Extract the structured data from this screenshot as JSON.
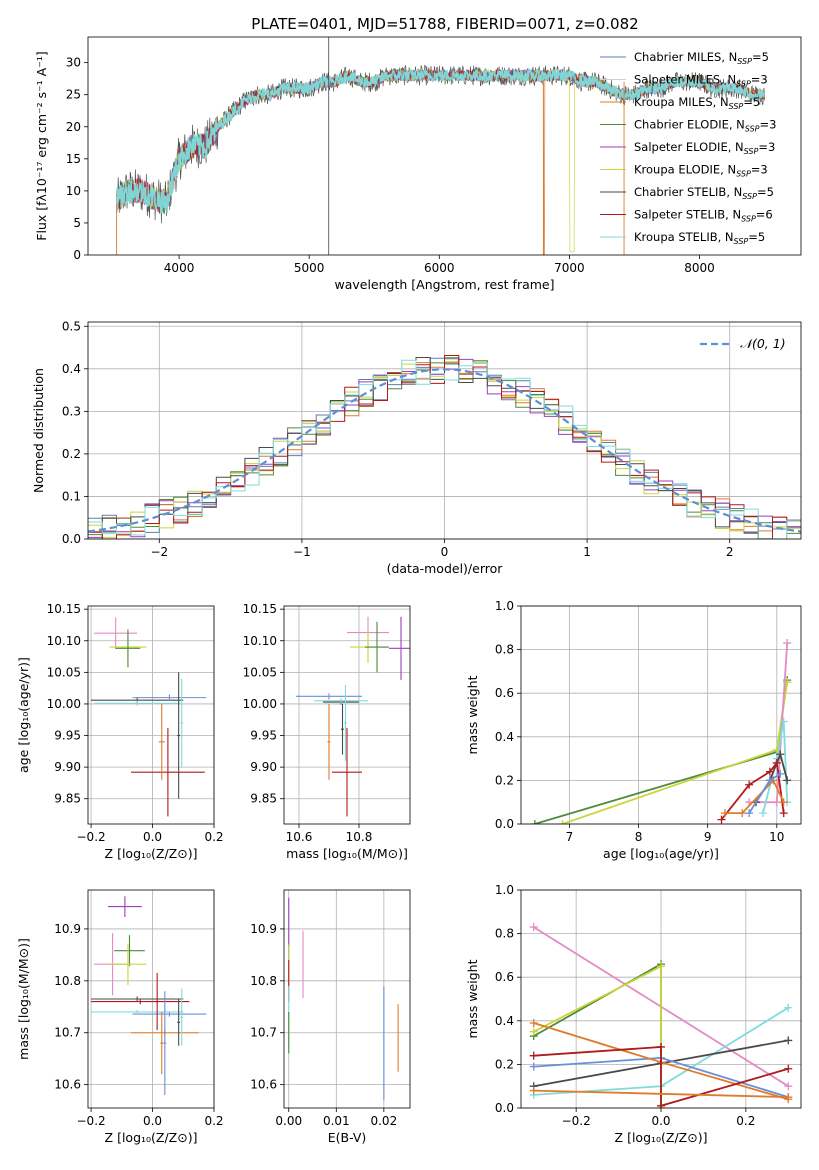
{
  "figure": {
    "title": "PLATE=0401, MJD=51788, FIBERID=0071, z=0.082"
  },
  "colors": {
    "chabrier_miles": "#5b7fb0",
    "salpeter_miles": "#cfcfcf",
    "kroupa_miles": "#e07b2a",
    "chabrier_elodie": "#4f8a3c",
    "salpeter_elodie": "#9b3fc0",
    "kroupa_elodie": "#c8d63a",
    "chabrier_stelib": "#4a4a4a",
    "salpeter_stelib": "#b01a1a",
    "kroupa_stelib": "#7fdcdc",
    "blue": "#6a8fd8",
    "pink": "#e58ac3",
    "normal": "#5b8fd6"
  },
  "chart_data": [
    {
      "id": "spectrum",
      "type": "line",
      "title": "PLATE=0401, MJD=51788, FIBERID=0071, z=0.082",
      "xlabel": "wavelength [Angstrom, rest frame]",
      "ylabel": "Flux [fλ10⁻¹⁷ erg cm⁻² s⁻¹ A⁻¹]",
      "xlim": [
        3300,
        8780
      ],
      "ylim": [
        0,
        34
      ],
      "xticks": [
        4000,
        5000,
        6000,
        7000,
        8000
      ],
      "yticks": [
        0,
        5,
        10,
        15,
        20,
        25,
        30
      ],
      "grid": false,
      "legend_placement": "top-right",
      "x": [
        3500,
        3600,
        3700,
        3800,
        3900,
        4000,
        4100,
        4200,
        4300,
        4400,
        4500,
        4600,
        4700,
        4800,
        4900,
        5000,
        5100,
        5200,
        5300,
        5400,
        5500,
        5600,
        5700,
        5800,
        5900,
        6000,
        6100,
        6200,
        6300,
        6400,
        6500,
        6600,
        6700,
        6800,
        6900,
        7000,
        7100,
        7200,
        7300,
        7400,
        7500,
        7600,
        7700,
        7800,
        7900,
        8000,
        8100,
        8200,
        8300,
        8400,
        8500
      ],
      "y": [
        8,
        10,
        10,
        9,
        8,
        15,
        17,
        17,
        20,
        22,
        24,
        25,
        25,
        26,
        26,
        26,
        27,
        27,
        28,
        27,
        27,
        28,
        28,
        28,
        28,
        28,
        28,
        28,
        28,
        28,
        28,
        28,
        28,
        28,
        28,
        28,
        27,
        27,
        26,
        25,
        25,
        26,
        26,
        27,
        27,
        27,
        26,
        26,
        26,
        25,
        25
      ],
      "series": [
        {
          "name": "Chabrier MILES, N",
          "sub": "SSP",
          "suffix": "=5"
        },
        {
          "name": "Salpeter MILES, N",
          "sub": "SSP",
          "suffix": "=3"
        },
        {
          "name": "Kroupa MILES, N",
          "sub": "SSP",
          "suffix": "=5"
        },
        {
          "name": "Chabrier ELODIE, N",
          "sub": "SSP",
          "suffix": "=3"
        },
        {
          "name": "Salpeter ELODIE, N",
          "sub": "SSP",
          "suffix": "=3"
        },
        {
          "name": "Kroupa ELODIE, N",
          "sub": "SSP",
          "suffix": "=3"
        },
        {
          "name": "Chabrier STELIB, N",
          "sub": "SSP",
          "suffix": "=5"
        },
        {
          "name": "Salpeter STELIB, N",
          "sub": "SSP",
          "suffix": "=6"
        },
        {
          "name": "Kroupa STELIB, N",
          "sub": "SSP",
          "suffix": "=5"
        }
      ]
    },
    {
      "id": "residuals",
      "type": "histogram",
      "xlabel": "(data-model)/error",
      "ylabel": "Normed distribution",
      "xlim": [
        -2.5,
        2.5
      ],
      "ylim": [
        0,
        0.51
      ],
      "xticks": [
        -2,
        -1,
        0,
        1,
        2
      ],
      "yticks": [
        0.0,
        0.1,
        0.2,
        0.3,
        0.4,
        0.5
      ],
      "grid": true,
      "legend_placement": "top-right",
      "legend": [
        "𝒩(0, 1)"
      ],
      "bin_width": 0.1
    },
    {
      "id": "age_vs_z",
      "type": "errorbar",
      "xlabel": "Z [log₁₀(Z/Z⊙)]",
      "ylabel": "age  [log₁₀(age/yr)]",
      "xlim": [
        -0.21,
        0.2
      ],
      "ylim": [
        9.81,
        10.155
      ],
      "xticks": [
        -0.2,
        0.0,
        0.2
      ],
      "yticks": [
        9.85,
        9.9,
        9.95,
        10.0,
        10.05,
        10.1,
        10.15
      ],
      "points": [
        {
          "x": -0.12,
          "y": 10.112,
          "xerr": 0.07,
          "yerr": 0.025,
          "c": "pink"
        },
        {
          "x": -0.08,
          "y": 10.09,
          "xerr": 0.06,
          "yerr": 0.025,
          "c": "kroupa_elodie"
        },
        {
          "x": -0.08,
          "y": 10.088,
          "xerr": 0.04,
          "yerr": 0.03,
          "c": "chabrier_elodie"
        },
        {
          "x": -0.05,
          "y": 10.006,
          "xerr": 0.15,
          "yerr": 0.005,
          "c": "chabrier_stelib"
        },
        {
          "x": 0.055,
          "y": 10.01,
          "xerr": 0.12,
          "yerr": 0.005,
          "c": "blue"
        },
        {
          "x": -0.05,
          "y": 10.001,
          "xerr": 0.14,
          "yerr": 0.004,
          "c": "kroupa_stelib"
        },
        {
          "x": 0.05,
          "y": 9.892,
          "xerr": 0.12,
          "yerr": 0.07,
          "c": "salpeter_stelib"
        },
        {
          "x": 0.03,
          "y": 9.94,
          "xerr": 0.01,
          "yerr": 0.06,
          "c": "kroupa_miles"
        },
        {
          "x": 0.085,
          "y": 9.95,
          "xerr": 0.005,
          "yerr": 0.1,
          "c": "chabrier_stelib"
        },
        {
          "x": 0.095,
          "y": 9.97,
          "xerr": 0.005,
          "yerr": 0.07,
          "c": "kroupa_stelib"
        }
      ]
    },
    {
      "id": "age_vs_mass",
      "type": "errorbar",
      "xlabel": "mass [log₁₀(M/M⊙)]",
      "ylabel": "",
      "xlim": [
        10.55,
        10.97
      ],
      "ylim": [
        9.81,
        10.155
      ],
      "xticks": [
        10.6,
        10.8
      ],
      "yticks": [
        9.85,
        9.9,
        9.95,
        10.0,
        10.05,
        10.1,
        10.15
      ],
      "points": [
        {
          "x": 10.83,
          "y": 10.113,
          "xerr": 0.07,
          "yerr": 0.025,
          "c": "pink"
        },
        {
          "x": 10.83,
          "y": 10.09,
          "xerr": 0.06,
          "yerr": 0.025,
          "c": "kroupa_elodie"
        },
        {
          "x": 10.86,
          "y": 10.09,
          "xerr": 0.04,
          "yerr": 0.04,
          "c": "chabrier_elodie"
        },
        {
          "x": 10.94,
          "y": 10.088,
          "xerr": 0.04,
          "yerr": 0.05,
          "c": "salpeter_elodie"
        },
        {
          "x": 10.7,
          "y": 10.012,
          "xerr": 0.11,
          "yerr": 0.005,
          "c": "blue"
        },
        {
          "x": 10.74,
          "y": 10.003,
          "xerr": 0.06,
          "yerr": 0.004,
          "c": "chabrier_stelib"
        },
        {
          "x": 10.74,
          "y": 10.005,
          "xerr": 0.09,
          "yerr": 0.004,
          "c": "kroupa_stelib"
        },
        {
          "x": 10.76,
          "y": 9.892,
          "xerr": 0.05,
          "yerr": 0.07,
          "c": "salpeter_stelib"
        },
        {
          "x": 10.7,
          "y": 9.94,
          "xerr": 0.005,
          "yerr": 0.06,
          "c": "kroupa_miles"
        },
        {
          "x": 10.745,
          "y": 9.96,
          "xerr": 0.005,
          "yerr": 0.04,
          "c": "chabrier_stelib"
        },
        {
          "x": 10.755,
          "y": 9.97,
          "xerr": 0.005,
          "yerr": 0.06,
          "c": "kroupa_stelib"
        }
      ]
    },
    {
      "id": "weight_vs_age",
      "type": "line",
      "xlabel": "age  [log₁₀(age/yr)]",
      "ylabel": "mass weight",
      "xlim": [
        6.3,
        10.35
      ],
      "ylim": [
        0,
        1
      ],
      "xticks": [
        7,
        8,
        9,
        10
      ],
      "yticks": [
        0.0,
        0.2,
        0.4,
        0.6,
        0.8,
        1.0
      ],
      "grid": true,
      "series": [
        {
          "c": "chabrier_elodie",
          "x": [
            6.5,
            10.0,
            10.15
          ],
          "y": [
            0.0,
            0.33,
            0.66
          ]
        },
        {
          "c": "kroupa_elodie",
          "x": [
            6.9,
            10.0,
            10.15
          ],
          "y": [
            0.0,
            0.34,
            0.65
          ]
        },
        {
          "c": "pink",
          "x": [
            9.6,
            10.0,
            10.15
          ],
          "y": [
            0.1,
            0.1,
            0.83
          ]
        },
        {
          "c": "kroupa_stelib",
          "x": [
            9.8,
            10.0,
            10.1,
            10.15
          ],
          "y": [
            0.05,
            0.3,
            0.47,
            0.1
          ]
        },
        {
          "c": "chabrier_stelib",
          "x": [
            9.7,
            9.9,
            10.05,
            10.15
          ],
          "y": [
            0.1,
            0.2,
            0.32,
            0.2
          ]
        },
        {
          "c": "salpeter_stelib",
          "x": [
            9.2,
            9.6,
            9.9,
            10.0,
            10.1
          ],
          "y": [
            0.02,
            0.18,
            0.24,
            0.28,
            0.05
          ]
        },
        {
          "c": "kroupa_miles",
          "x": [
            9.25,
            9.5,
            9.95,
            10.1
          ],
          "y": [
            0.05,
            0.05,
            0.2,
            0.1
          ]
        },
        {
          "c": "blue",
          "x": [
            9.6,
            9.9,
            10.05
          ],
          "y": [
            0.05,
            0.2,
            0.23
          ]
        }
      ]
    },
    {
      "id": "mass_vs_z",
      "type": "errorbar",
      "xlabel": "Z [log₁₀(Z/Z⊙)]",
      "ylabel": "mass [log₁₀(M/M⊙)]",
      "xlim": [
        -0.21,
        0.2
      ],
      "ylim": [
        10.555,
        10.975
      ],
      "xticks": [
        -0.2,
        0.0,
        0.2
      ],
      "yticks": [
        10.6,
        10.7,
        10.8,
        10.9
      ],
      "points": [
        {
          "x": -0.09,
          "y": 10.943,
          "xerr": 0.055,
          "yerr": 0.02,
          "c": "salpeter_elodie"
        },
        {
          "x": -0.075,
          "y": 10.858,
          "xerr": 0.05,
          "yerr": 0.03,
          "c": "chabrier_elodie"
        },
        {
          "x": -0.13,
          "y": 10.832,
          "xerr": 0.06,
          "yerr": 0.06,
          "c": "pink"
        },
        {
          "x": -0.08,
          "y": 10.832,
          "xerr": 0.06,
          "yerr": 0.04,
          "c": "kroupa_elodie"
        },
        {
          "x": -0.05,
          "y": 10.765,
          "xerr": 0.15,
          "yerr": 0.005,
          "c": "chabrier_stelib"
        },
        {
          "x": -0.04,
          "y": 10.76,
          "xerr": 0.16,
          "yerr": 0.005,
          "c": "salpeter_stelib"
        },
        {
          "x": 0.055,
          "y": 10.736,
          "xerr": 0.12,
          "yerr": 0.005,
          "c": "blue"
        },
        {
          "x": -0.05,
          "y": 10.74,
          "xerr": 0.15,
          "yerr": 0.004,
          "c": "kroupa_stelib"
        },
        {
          "x": 0.04,
          "y": 10.7,
          "xerr": 0.11,
          "yerr": 0.005,
          "c": "kroupa_miles"
        },
        {
          "x": 0.015,
          "y": 10.76,
          "xerr": 0.005,
          "yerr": 0.055,
          "c": "salpeter_stelib"
        },
        {
          "x": 0.04,
          "y": 10.68,
          "xerr": 0.005,
          "yerr": 0.1,
          "c": "blue"
        },
        {
          "x": 0.085,
          "y": 10.72,
          "xerr": 0.005,
          "yerr": 0.045,
          "c": "chabrier_stelib"
        },
        {
          "x": 0.095,
          "y": 10.73,
          "xerr": 0.005,
          "yerr": 0.055,
          "c": "kroupa_stelib"
        },
        {
          "x": 0.03,
          "y": 10.68,
          "xerr": 0.005,
          "yerr": 0.06,
          "c": "kroupa_miles"
        }
      ]
    },
    {
      "id": "mass_vs_ebv",
      "type": "errorbar",
      "xlabel": "E(B-V)",
      "ylabel": "",
      "xlim": [
        -0.001,
        0.0255
      ],
      "ylim": [
        10.555,
        10.975
      ],
      "xticks": [
        0.0,
        0.01,
        0.02
      ],
      "yticks": [
        10.6,
        10.7,
        10.8,
        10.9
      ],
      "points": [
        {
          "x": 0.0,
          "y": 10.9,
          "xerr": 0,
          "yerr": 0.06,
          "c": "salpeter_elodie"
        },
        {
          "x": 0.0,
          "y": 10.83,
          "xerr": 0,
          "yerr": 0.04,
          "c": "kroupa_elodie"
        },
        {
          "x": 0.0,
          "y": 10.8,
          "xerr": 0,
          "yerr": 0.04,
          "c": "salpeter_stelib"
        },
        {
          "x": 0.0,
          "y": 10.73,
          "xerr": 0,
          "yerr": 0.06,
          "c": "kroupa_stelib"
        },
        {
          "x": 0.0,
          "y": 10.7,
          "xerr": 0,
          "yerr": 0.04,
          "c": "chabrier_elodie"
        },
        {
          "x": 0.003,
          "y": 10.832,
          "xerr": 0,
          "yerr": 0.065,
          "c": "pink"
        },
        {
          "x": 0.02,
          "y": 10.68,
          "xerr": 0,
          "yerr": 0.11,
          "c": "blue"
        },
        {
          "x": 0.023,
          "y": 10.69,
          "xerr": 0,
          "yerr": 0.065,
          "c": "kroupa_miles"
        }
      ]
    },
    {
      "id": "weight_vs_z",
      "type": "line",
      "xlabel": "Z [log₁₀(Z/Z⊙)]",
      "ylabel": "mass weight",
      "xlim": [
        -0.33,
        0.33
      ],
      "ylim": [
        0,
        1
      ],
      "xticks": [
        -0.2,
        0.0,
        0.2
      ],
      "yticks": [
        0.0,
        0.2,
        0.4,
        0.6,
        0.8,
        1.0
      ],
      "grid": true,
      "series": [
        {
          "c": "pink",
          "x": [
            -0.3,
            0.3
          ],
          "y": [
            0.83,
            0.1
          ]
        },
        {
          "c": "chabrier_elodie",
          "x": [
            -0.3,
            0.0,
            0.0
          ],
          "y": [
            0.33,
            0.66,
            0.0
          ]
        },
        {
          "c": "kroupa_elodie",
          "x": [
            -0.3,
            0.0,
            0.0
          ],
          "y": [
            0.35,
            0.65,
            0.0
          ]
        },
        {
          "c": "kroupa_stelib",
          "x": [
            -0.3,
            0.0,
            0.3
          ],
          "y": [
            0.06,
            0.1,
            0.46
          ]
        },
        {
          "c": "chabrier_stelib",
          "x": [
            -0.3,
            0.3
          ],
          "y": [
            0.1,
            0.31
          ]
        },
        {
          "c": "blue",
          "x": [
            -0.3,
            0.0,
            0.3
          ],
          "y": [
            0.19,
            0.23,
            0.05
          ]
        },
        {
          "c": "kroupa_miles",
          "x": [
            -0.3,
            0.0,
            0.3
          ],
          "y": [
            0.39,
            0.21,
            0.04
          ]
        },
        {
          "c": "salpeter_stelib",
          "x": [
            -0.3,
            0.0,
            0.0,
            0.3
          ],
          "y": [
            0.24,
            0.28,
            0.01,
            0.18
          ]
        },
        {
          "c": "kroupa_miles",
          "x": [
            -0.3,
            0.3
          ],
          "y": [
            0.08,
            0.05
          ]
        }
      ]
    }
  ]
}
